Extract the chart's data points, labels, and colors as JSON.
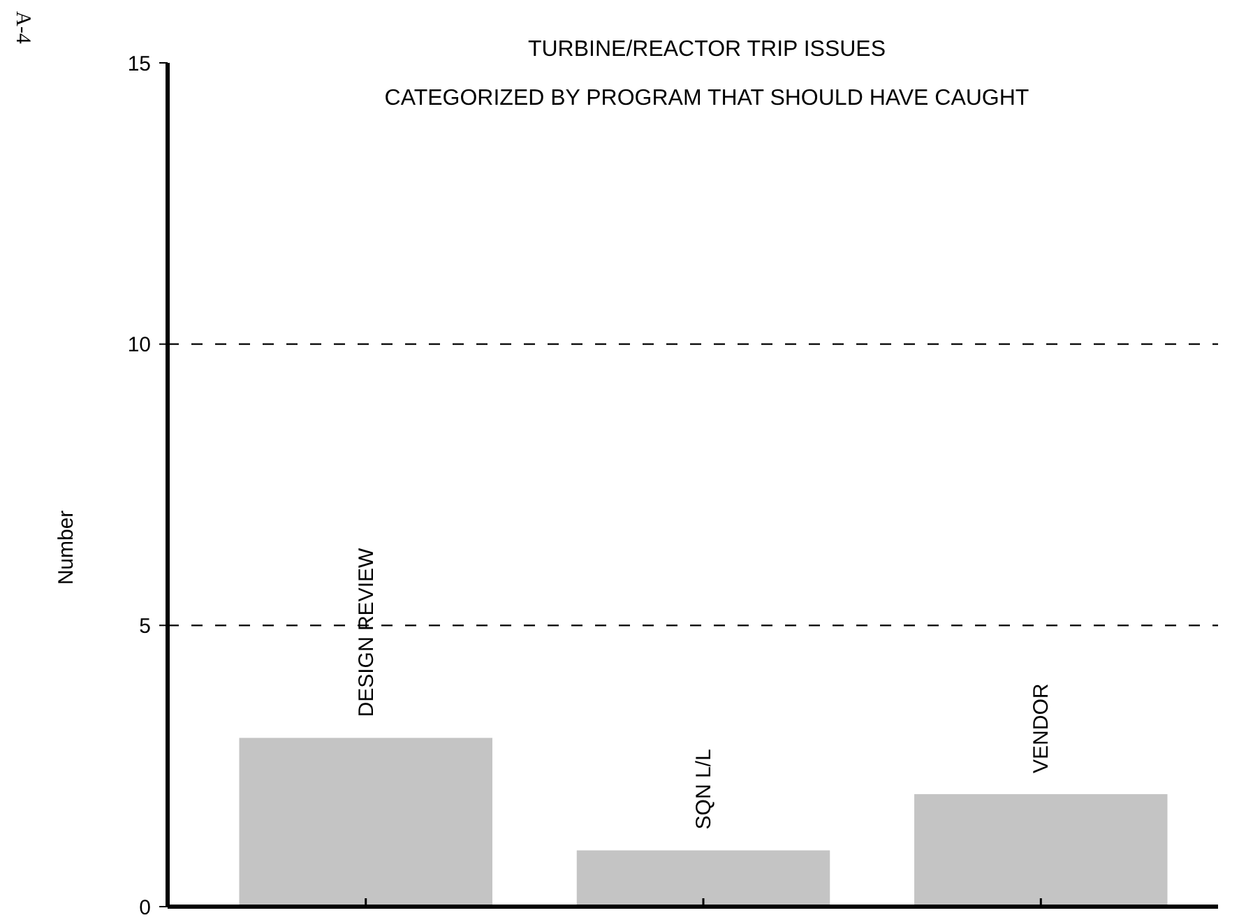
{
  "chart_data": {
    "type": "bar",
    "title": "TURBINE/REACTOR TRIP ISSUES",
    "subtitle": "CATEGORIZED BY PROGRAM THAT SHOULD HAVE CAUGHT",
    "ylabel": "Number",
    "categories": [
      "DESIGN REVIEW",
      "SQN L/L",
      "VENDOR"
    ],
    "values": [
      3,
      1,
      2
    ],
    "color": "#c4c4c4",
    "ylim": [
      0,
      15
    ],
    "yticks": [
      0,
      5,
      10,
      15
    ],
    "grid": "y",
    "annotations": [
      "A-4"
    ]
  }
}
